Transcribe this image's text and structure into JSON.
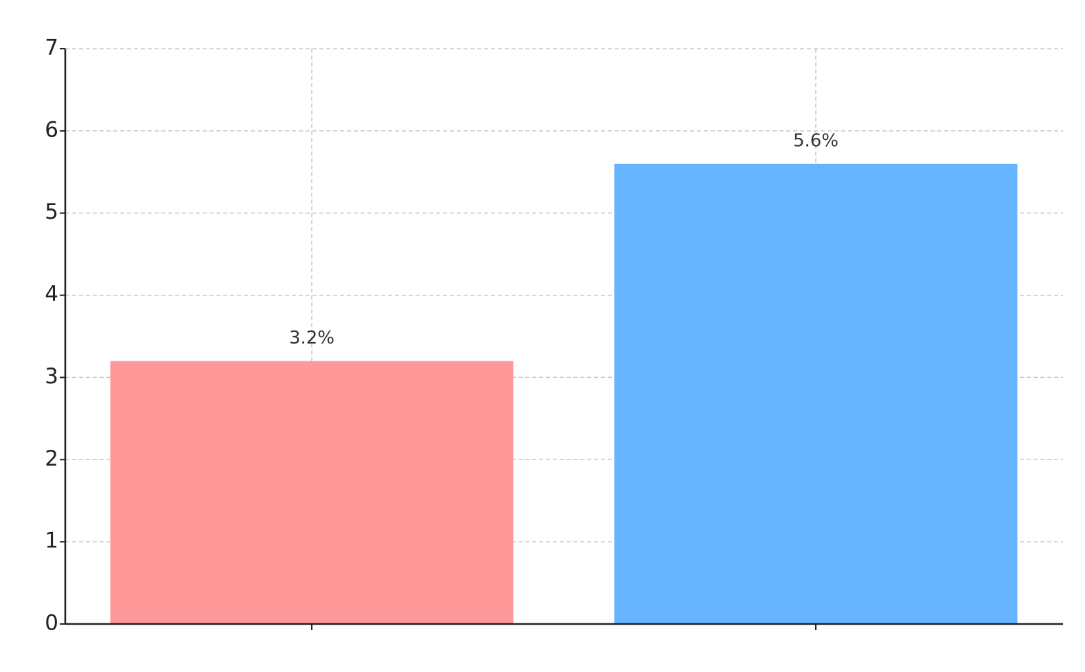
{
  "chart_data": {
    "type": "bar",
    "categories": [
      null,
      null
    ],
    "values": [
      3.2,
      5.6
    ],
    "value_labels": [
      "3.2%",
      "5.6%"
    ],
    "colors": [
      "#ff9999",
      "#66b3ff"
    ],
    "ylim": [
      0,
      7
    ],
    "yticks": [
      0,
      1,
      2,
      3,
      4,
      5,
      6,
      7
    ],
    "grid": true
  }
}
